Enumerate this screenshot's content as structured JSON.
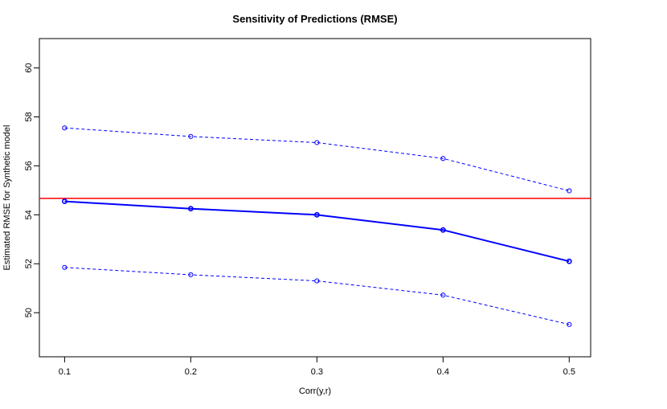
{
  "chart_data": {
    "type": "line",
    "title": "Sensitivity of Predictions (RMSE)",
    "xlabel": "Corr(y,r)",
    "ylabel": "Estimated RMSE for Synthetic model",
    "x": [
      0.1,
      0.2,
      0.3,
      0.4,
      0.5
    ],
    "x_ticks": [
      "0.1",
      "0.2",
      "0.3",
      "0.4",
      "0.5"
    ],
    "y_ticks": [
      "50",
      "52",
      "54",
      "56",
      "58",
      "60"
    ],
    "xlim": [
      0.08,
      0.517
    ],
    "ylim": [
      48.2,
      61.2
    ],
    "grid": false,
    "series": [
      {
        "role": "estimate",
        "values": [
          54.55,
          54.25,
          54.0,
          53.38,
          52.1
        ],
        "color": "#0000ff",
        "line_style": "solid"
      },
      {
        "role": "upper-bound",
        "values": [
          57.55,
          57.2,
          56.95,
          56.3,
          54.98
        ],
        "color": "#0000ff",
        "line_style": "dashed"
      },
      {
        "role": "lower-bound",
        "values": [
          51.85,
          51.55,
          51.3,
          50.72,
          49.52
        ],
        "color": "#0000ff",
        "line_style": "dashed"
      }
    ],
    "reference_line": {
      "y": 54.67,
      "color": "#ff0000",
      "orientation": "horizontal"
    }
  }
}
